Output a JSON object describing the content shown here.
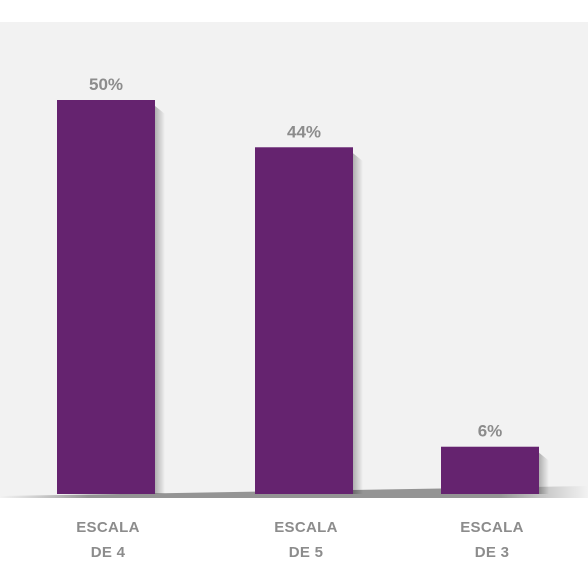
{
  "chart_data": {
    "type": "bar",
    "categories": [
      [
        "ESCALA",
        "DE 4"
      ],
      [
        "ESCALA",
        "DE 5"
      ],
      [
        "ESCALA",
        "DE 3"
      ]
    ],
    "values": [
      50,
      44,
      6
    ],
    "value_labels": [
      "50%",
      "44%",
      "6%"
    ],
    "ylim": [
      0,
      50
    ],
    "grid": false,
    "bar_color": "#65236f",
    "background_color": "#f2f2f2",
    "label_color": "#8c8c8c"
  }
}
